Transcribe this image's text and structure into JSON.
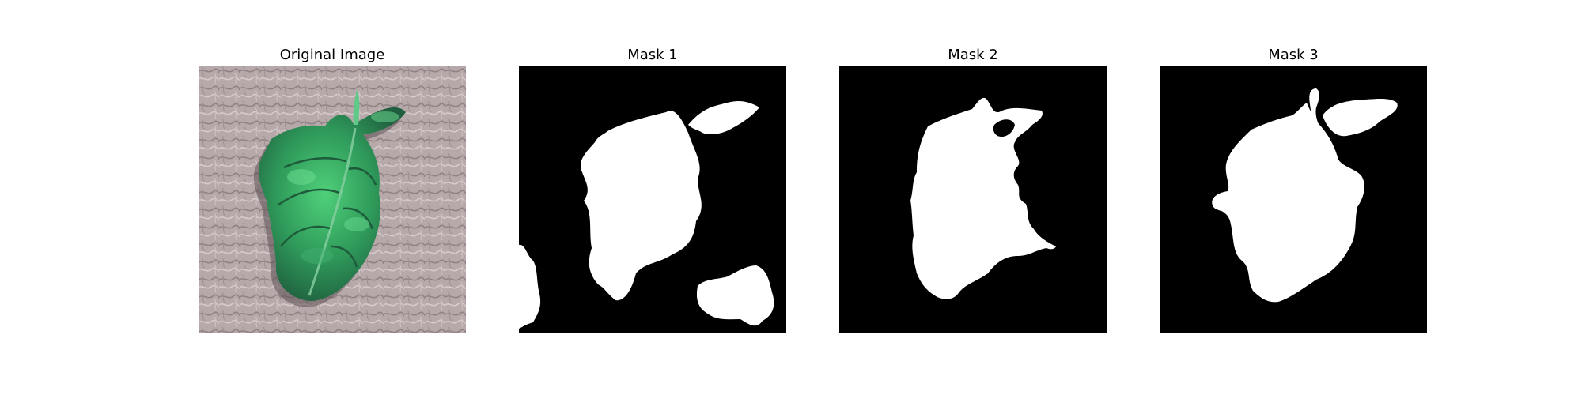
{
  "figure": {
    "panels": [
      {
        "title": "Original Image",
        "kind": "photo"
      },
      {
        "title": "Mask 1",
        "kind": "mask"
      },
      {
        "title": "Mask 2",
        "kind": "mask"
      },
      {
        "title": "Mask 3",
        "kind": "mask"
      }
    ]
  },
  "colors": {
    "mask_background": "#000000",
    "mask_foreground": "#ffffff",
    "photo_background": "#b5a7a8",
    "leaf_dark": "#2f7a4a",
    "leaf_light": "#4fd07a"
  }
}
